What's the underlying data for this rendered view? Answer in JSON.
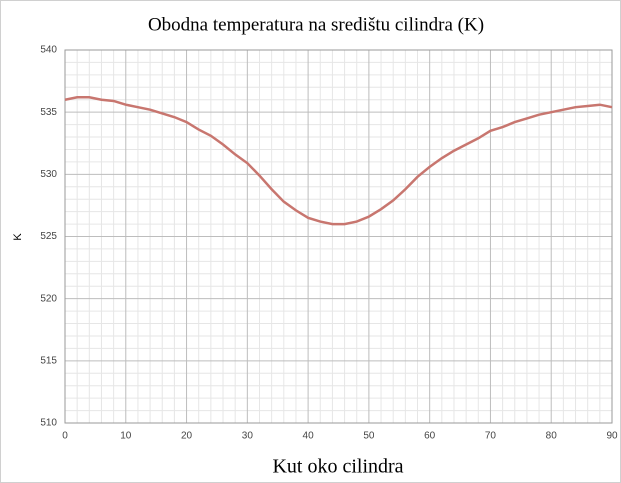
{
  "chart_data": {
    "type": "line",
    "title": "Obodna temperatura na središtu cilindra (K)",
    "xlabel": "Kut oko cilindra",
    "ylabel": "K",
    "x": [
      0,
      2,
      4,
      6,
      8,
      10,
      12,
      14,
      16,
      18,
      20,
      22,
      24,
      26,
      28,
      30,
      32,
      34,
      36,
      38,
      40,
      42,
      44,
      46,
      48,
      50,
      52,
      54,
      56,
      58,
      60,
      62,
      64,
      66,
      68,
      70,
      72,
      74,
      76,
      78,
      80,
      82,
      84,
      86,
      88,
      90
    ],
    "series": [
      {
        "name": "K",
        "color": "#c8766f",
        "values": [
          536.0,
          536.2,
          536.2,
          536.0,
          535.9,
          535.6,
          535.4,
          535.2,
          534.9,
          534.6,
          534.2,
          533.6,
          533.1,
          532.4,
          531.6,
          530.9,
          529.9,
          528.8,
          527.8,
          527.1,
          526.5,
          526.2,
          526.0,
          526.0,
          526.2,
          526.6,
          527.2,
          527.9,
          528.8,
          529.8,
          530.6,
          531.3,
          531.9,
          532.4,
          532.9,
          533.5,
          533.8,
          534.2,
          534.5,
          534.8,
          535.0,
          535.2,
          535.4,
          535.5,
          535.6,
          535.4
        ]
      }
    ],
    "xlim": [
      0,
      90
    ],
    "xticks": [
      0,
      10,
      20,
      30,
      40,
      50,
      60,
      70,
      80,
      90
    ],
    "ylim": [
      510,
      540
    ],
    "yticks": [
      510,
      515,
      520,
      525,
      530,
      535,
      540
    ],
    "xminorticks": [
      2,
      4,
      6,
      8,
      12,
      14,
      16,
      18,
      22,
      24,
      26,
      28,
      32,
      34,
      36,
      38,
      42,
      44,
      46,
      48,
      52,
      54,
      56,
      58,
      62,
      64,
      66,
      68,
      72,
      74,
      76,
      78,
      82,
      84,
      86,
      88
    ],
    "yminorticks": [
      511,
      512,
      513,
      514,
      516,
      517,
      518,
      519,
      521,
      522,
      523,
      524,
      526,
      527,
      528,
      529,
      531,
      532,
      533,
      534,
      536,
      537,
      538,
      539
    ],
    "grid": true
  }
}
